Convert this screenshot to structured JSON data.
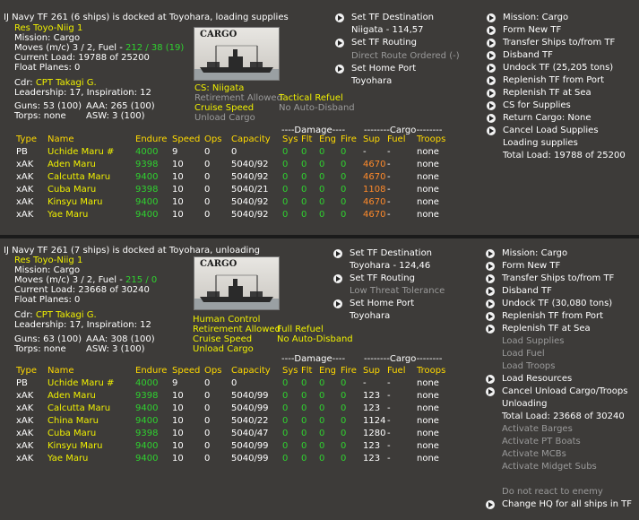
{
  "panel1": {
    "title": "IJ Navy TF 261 (6 ships) is docked at Toyohara, loading supplies",
    "res": "Res Toyo-Niig 1",
    "mission": "Mission: Cargo",
    "moves_prefix": "Moves (m/c)  3 / 2, Fuel - ",
    "fuel": "212 / 38 (19)",
    "current_load": "Current Load:  19788 of 25200",
    "float_planes": "Float Planes: 0",
    "cdr_label": "Cdr: ",
    "cdr_name": "CPT Takagi G.",
    "leadership": "Leadership: 17, Inspiration: 12",
    "guns": "Guns: 53 (100)",
    "aaa": "AAA: 265 (100)",
    "torps": "Torps: none",
    "asw": "ASW: 3 (100)",
    "image_label": "CARGO",
    "cs": "CS: Niigata",
    "retirement": "Retirement Allowed",
    "tactical_refuel": "Tactical Refuel",
    "cruise_speed": "Cruise Speed",
    "auto_disband": "No Auto-Disband",
    "unload_cargo": "Unload Cargo",
    "mid_menu": [
      {
        "label": "Set TF Destination",
        "arrow": true
      },
      {
        "label": "Niigata - 114,57",
        "arrow": false
      },
      {
        "label": "Set TF Routing",
        "arrow": true
      },
      {
        "label": "Direct Route Ordered (-)",
        "arrow": false,
        "gray": true
      },
      {
        "label": "Set Home Port",
        "arrow": true
      },
      {
        "label": "Toyohara",
        "arrow": false
      }
    ],
    "right_menu": [
      {
        "label": "Mission: Cargo",
        "arrow": true
      },
      {
        "label": "Form New TF",
        "arrow": true
      },
      {
        "label": "Transfer Ships to/from TF",
        "arrow": true
      },
      {
        "label": "Disband TF",
        "arrow": true
      },
      {
        "label": "Undock TF (25,205 tons)",
        "arrow": true
      },
      {
        "label": "Replenish TF from Port",
        "arrow": true
      },
      {
        "label": "Replenish TF at Sea",
        "arrow": true
      },
      {
        "label": "CS for Supplies",
        "arrow": true
      },
      {
        "label": "Return Cargo: None",
        "arrow": true
      },
      {
        "label": "Cancel Load Supplies",
        "arrow": true
      },
      {
        "label": "Loading supplies",
        "arrow": false
      },
      {
        "label": "Total Load: 19788 of 25200",
        "arrow": false
      }
    ],
    "damage_header": "----Damage----",
    "cargo_header": "--------Cargo--------",
    "columns": [
      "Type",
      "Name",
      "Endure",
      "Speed",
      "Ops",
      "Capacity",
      "Sys",
      "Flt",
      "Eng",
      "Fire",
      "Sup",
      "Fuel",
      "Troops"
    ],
    "ships": [
      {
        "type": "PB",
        "name": "Uchide Maru #",
        "endure": "4000",
        "speed": "9",
        "ops": "0",
        "capacity": "0",
        "sys": "0",
        "flt": "0",
        "eng": "0",
        "fire": "0",
        "sup": "-",
        "fuel": "-",
        "troops": "none",
        "sup_color": "wht"
      },
      {
        "type": "xAK",
        "name": "Aden Maru",
        "endure": "9398",
        "speed": "10",
        "ops": "0",
        "capacity": "5040/92",
        "sys": "0",
        "flt": "0",
        "eng": "0",
        "fire": "0",
        "sup": "4670",
        "fuel": "-",
        "troops": "none",
        "sup_color": "ora"
      },
      {
        "type": "xAK",
        "name": "Calcutta Maru",
        "endure": "9400",
        "speed": "10",
        "ops": "0",
        "capacity": "5040/92",
        "sys": "0",
        "flt": "0",
        "eng": "0",
        "fire": "0",
        "sup": "4670",
        "fuel": "-",
        "troops": "none",
        "sup_color": "ora"
      },
      {
        "type": "xAK",
        "name": "Cuba Maru",
        "endure": "9398",
        "speed": "10",
        "ops": "0",
        "capacity": "5040/21",
        "sys": "0",
        "flt": "0",
        "eng": "0",
        "fire": "0",
        "sup": "1108",
        "fuel": "-",
        "troops": "none",
        "sup_color": "ora"
      },
      {
        "type": "xAK",
        "name": "Kinsyu Maru",
        "endure": "9400",
        "speed": "10",
        "ops": "0",
        "capacity": "5040/92",
        "sys": "0",
        "flt": "0",
        "eng": "0",
        "fire": "0",
        "sup": "4670",
        "fuel": "-",
        "troops": "none",
        "sup_color": "ora"
      },
      {
        "type": "xAK",
        "name": "Yae Maru",
        "endure": "9400",
        "speed": "10",
        "ops": "0",
        "capacity": "5040/92",
        "sys": "0",
        "flt": "0",
        "eng": "0",
        "fire": "0",
        "sup": "4670",
        "fuel": "-",
        "troops": "none",
        "sup_color": "ora"
      }
    ]
  },
  "panel2": {
    "title": "IJ Navy TF 261 (7 ships) is docked at Toyohara, unloading",
    "res": "Res Toyo-Niig 1",
    "mission": "Mission: Cargo",
    "moves_prefix": "Moves (m/c)  3 / 2, Fuel - ",
    "fuel": "215 / 0",
    "current_load": "Current Load:  23668 of 30240",
    "float_planes": "Float Planes: 0",
    "cdr_label": "Cdr: ",
    "cdr_name": "CPT Takagi G.",
    "leadership": "Leadership: 17, Inspiration: 12",
    "guns": "Guns: 63 (100)",
    "aaa": "AAA: 308 (100)",
    "torps": "Torps: none",
    "asw": "ASW: 3 (100)",
    "image_label": "CARGO",
    "human_control": "Human Control",
    "retirement": "Retirement Allowed",
    "full_refuel": "Full Refuel",
    "cruise_speed": "Cruise Speed",
    "auto_disband": "No Auto-Disband",
    "unload_cargo": "Unload Cargo",
    "mid_menu": [
      {
        "label": "Set TF Destination",
        "arrow": true
      },
      {
        "label": "Toyohara - 124,46",
        "arrow": false
      },
      {
        "label": "Set TF Routing",
        "arrow": true
      },
      {
        "label": "Low Threat Tolerance",
        "arrow": false,
        "gray": true
      },
      {
        "label": "Set Home Port",
        "arrow": true
      },
      {
        "label": "Toyohara",
        "arrow": false
      }
    ],
    "right_menu": [
      {
        "label": "Mission: Cargo",
        "arrow": true
      },
      {
        "label": "Form New TF",
        "arrow": true
      },
      {
        "label": "Transfer Ships to/from TF",
        "arrow": true
      },
      {
        "label": "Disband TF",
        "arrow": true
      },
      {
        "label": "Undock TF (30,080 tons)",
        "arrow": true
      },
      {
        "label": "Replenish TF from Port",
        "arrow": true
      },
      {
        "label": "Replenish TF at Sea",
        "arrow": true
      },
      {
        "label": "Load Supplies",
        "arrow": false,
        "gray": true
      },
      {
        "label": "Load Fuel",
        "arrow": false,
        "gray": true
      },
      {
        "label": "Load Troops",
        "arrow": false,
        "gray": true
      },
      {
        "label": "Load Resources",
        "arrow": true
      },
      {
        "label": "Cancel Unload Cargo/Troops",
        "arrow": true
      },
      {
        "label": "Unloading",
        "arrow": false
      },
      {
        "label": "Total Load: 23668 of 30240",
        "arrow": false
      },
      {
        "label": "Activate Barges",
        "arrow": false,
        "gray": true
      },
      {
        "label": "Activate PT Boats",
        "arrow": false,
        "gray": true
      },
      {
        "label": "Activate MCBs",
        "arrow": false,
        "gray": true
      },
      {
        "label": "Activate Midget Subs",
        "arrow": false,
        "gray": true
      },
      {
        "label": "",
        "arrow": false
      },
      {
        "label": "Do not react to enemy",
        "arrow": false,
        "gray": true
      },
      {
        "label": "Change HQ for all ships in TF",
        "arrow": true
      }
    ],
    "damage_header": "----Damage----",
    "cargo_header": "--------Cargo--------",
    "columns": [
      "Type",
      "Name",
      "Endure",
      "Speed",
      "Ops",
      "Capacity",
      "Sys",
      "Flt",
      "Eng",
      "Fire",
      "Sup",
      "Fuel",
      "Troops"
    ],
    "ships": [
      {
        "type": "PB",
        "name": "Uchide Maru #",
        "endure": "4000",
        "speed": "9",
        "ops": "0",
        "capacity": "0",
        "sys": "0",
        "flt": "0",
        "eng": "0",
        "fire": "0",
        "sup": "-",
        "fuel": "-",
        "troops": "none",
        "sup_color": "wht"
      },
      {
        "type": "xAK",
        "name": "Aden Maru",
        "endure": "9398",
        "speed": "10",
        "ops": "0",
        "capacity": "5040/99",
        "sys": "0",
        "flt": "0",
        "eng": "0",
        "fire": "0",
        "sup": "123",
        "fuel": "-",
        "troops": "none",
        "sup_color": "wht"
      },
      {
        "type": "xAK",
        "name": "Calcutta Maru",
        "endure": "9400",
        "speed": "10",
        "ops": "0",
        "capacity": "5040/99",
        "sys": "0",
        "flt": "0",
        "eng": "0",
        "fire": "0",
        "sup": "123",
        "fuel": "-",
        "troops": "none",
        "sup_color": "wht"
      },
      {
        "type": "xAK",
        "name": "China Maru",
        "endure": "9400",
        "speed": "10",
        "ops": "0",
        "capacity": "5040/22",
        "sys": "0",
        "flt": "0",
        "eng": "0",
        "fire": "0",
        "sup": "1124",
        "fuel": "-",
        "troops": "none",
        "sup_color": "wht"
      },
      {
        "type": "xAK",
        "name": "Cuba Maru",
        "endure": "9398",
        "speed": "10",
        "ops": "0",
        "capacity": "5040/47",
        "sys": "0",
        "flt": "0",
        "eng": "0",
        "fire": "0",
        "sup": "1280",
        "fuel": "-",
        "troops": "none",
        "sup_color": "wht"
      },
      {
        "type": "xAK",
        "name": "Kinsyu Maru",
        "endure": "9400",
        "speed": "10",
        "ops": "0",
        "capacity": "5040/99",
        "sys": "0",
        "flt": "0",
        "eng": "0",
        "fire": "0",
        "sup": "123",
        "fuel": "-",
        "troops": "none",
        "sup_color": "wht"
      },
      {
        "type": "xAK",
        "name": "Yae Maru",
        "endure": "9400",
        "speed": "10",
        "ops": "0",
        "capacity": "5040/99",
        "sys": "0",
        "flt": "0",
        "eng": "0",
        "fire": "0",
        "sup": "123",
        "fuel": "-",
        "troops": "none",
        "sup_color": "wht"
      }
    ]
  },
  "colors": {
    "background": "#3d3b39",
    "yellow": "#f0f000",
    "green": "#2fd22f",
    "orange": "#ff8a2a",
    "gray": "#9a9a9a",
    "header": "#ffd900"
  }
}
